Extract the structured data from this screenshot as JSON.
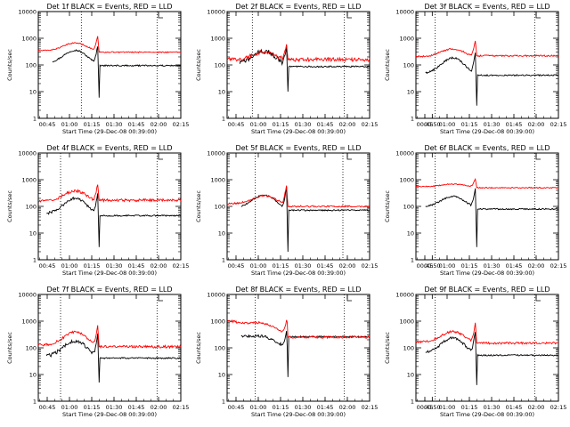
{
  "colors": {
    "black_series": "#000000",
    "red_series": "#ff0000",
    "axes": "#000000"
  },
  "chart_data": [
    {
      "type": "line",
      "title": "Det 1f BLACK = Events, RED = LLD",
      "xlabel": "Start Time (29-Dec-08 00:39:00)",
      "ylabel": "Counts/sec",
      "yscale": "log",
      "ylim": [
        1,
        10000
      ],
      "xlim": [
        0,
        96
      ],
      "x_ticks": [
        "00:45",
        "01:00",
        "01:15",
        "01:30",
        "01:45",
        "02:00",
        "02:15"
      ],
      "x_tick_pos": [
        6,
        21,
        36,
        51,
        66,
        81,
        96
      ],
      "y_ticks": [
        "1",
        "10",
        "100",
        "1000",
        "10000"
      ],
      "dotted_lines": [
        29,
        80
      ],
      "flag_x": 81,
      "series": [
        {
          "color": "#000000",
          "start": 19,
          "base": 120,
          "wave": 0.25,
          "noise": 0.03,
          "spike": 4.5,
          "dip_to": 6
        },
        {
          "color": "#ff0000",
          "start": 0,
          "base": 350,
          "wave": 0.15,
          "noise": 0.02,
          "spike": 3.5,
          "dip_to": 300
        }
      ]
    },
    {
      "type": "line",
      "title": "Det 2f BLACK = Events, RED = LLD",
      "xlabel": "Start Time (29-Dec-08 00:39:00)",
      "ylabel": "Counts/sec",
      "yscale": "log",
      "ylim": [
        1,
        10000
      ],
      "xlim": [
        0,
        96
      ],
      "x_ticks": [
        "00:45",
        "01:00",
        "01:15",
        "01:30",
        "01:45",
        "02:00",
        "02:15"
      ],
      "x_tick_pos": [
        6,
        21,
        36,
        51,
        66,
        81,
        96
      ],
      "y_ticks": [
        "1",
        "10",
        "100",
        "1000",
        "10000"
      ],
      "dotted_lines": [
        17,
        79
      ],
      "flag_x": 81,
      "series": [
        {
          "color": "#000000",
          "start": 17,
          "base": 110,
          "wave": 0.25,
          "noise": 0.09,
          "spike": 5.0,
          "dip_to": 10
        },
        {
          "color": "#ff0000",
          "start": 0,
          "base": 160,
          "wave": 0.15,
          "noise": 0.07,
          "spike": 4.0,
          "dip_to": 160
        }
      ]
    },
    {
      "type": "line",
      "title": "Det 3f BLACK = Events, RED = LLD",
      "xlabel": "Start Time (29-Dec-08 00:39:00)",
      "ylabel": "Counts/sec",
      "yscale": "log",
      "ylim": [
        1,
        10000
      ],
      "xlim": [
        0,
        96
      ],
      "x_ticks": [
        "00:45",
        "00:50",
        "01:00",
        "01:15",
        "01:30",
        "01:45",
        "02:00",
        "02:15"
      ],
      "x_tick_pos": [
        6,
        11,
        21,
        36,
        51,
        66,
        81,
        96
      ],
      "y_ticks": [
        "1",
        "10",
        "100",
        "1000",
        "10000"
      ],
      "dotted_lines": [
        13,
        80
      ],
      "flag_x": 81,
      "series": [
        {
          "color": "#000000",
          "start": 13,
          "base": 50,
          "wave": 0.3,
          "noise": 0.04,
          "spike": 6.0,
          "dip_to": 3
        },
        {
          "color": "#ff0000",
          "start": 0,
          "base": 210,
          "wave": 0.15,
          "noise": 0.03,
          "spike": 4.0,
          "dip_to": 220
        }
      ]
    },
    {
      "type": "line",
      "title": "Det 4f BLACK = Events, RED = LLD",
      "xlabel": "Start Time (29-Dec-08 00:39:00)",
      "ylabel": "Counts/sec",
      "yscale": "log",
      "ylim": [
        1,
        10000
      ],
      "xlim": [
        0,
        96
      ],
      "x_ticks": [
        "00:45",
        "01:00",
        "01:15",
        "01:30",
        "01:45",
        "02:00",
        "02:15"
      ],
      "x_tick_pos": [
        6,
        21,
        36,
        51,
        66,
        81,
        96
      ],
      "y_ticks": [
        "1",
        "10",
        "100",
        "1000",
        "10000"
      ],
      "dotted_lines": [
        15,
        80
      ],
      "flag_x": 81,
      "series": [
        {
          "color": "#000000",
          "start": 11,
          "base": 55,
          "wave": 0.3,
          "noise": 0.05,
          "spike": 6.0,
          "dip_to": 3
        },
        {
          "color": "#ff0000",
          "start": 0,
          "base": 160,
          "wave": 0.2,
          "noise": 0.05,
          "spike": 4.5,
          "dip_to": 170
        }
      ]
    },
    {
      "type": "line",
      "title": "Det 5f BLACK = Events, RED = LLD",
      "xlabel": "Start Time (29-Dec-08 00:39:00)",
      "ylabel": "Counts/sec",
      "yscale": "log",
      "ylim": [
        1,
        10000
      ],
      "xlim": [
        0,
        96
      ],
      "x_ticks": [
        "00:45",
        "01:00",
        "01:15",
        "01:30",
        "01:45",
        "02:00",
        "02:15"
      ],
      "x_tick_pos": [
        6,
        21,
        36,
        51,
        66,
        81,
        96
      ],
      "y_ticks": [
        "1",
        "10",
        "100",
        "1000",
        "10000"
      ],
      "dotted_lines": [
        19,
        78
      ],
      "flag_x": 81,
      "series": [
        {
          "color": "#000000",
          "start": 19,
          "base": 90,
          "wave": 0.25,
          "noise": 0.03,
          "spike": 6.0,
          "dip_to": 2
        },
        {
          "color": "#ff0000",
          "start": 0,
          "base": 130,
          "wave": 0.15,
          "noise": 0.03,
          "spike": 5.0,
          "dip_to": 100
        }
      ]
    },
    {
      "type": "line",
      "title": "Det 6f BLACK = Events, RED = LLD",
      "xlabel": "Start Time (29-Dec-08 00:39:00)",
      "ylabel": "Counts/sec",
      "yscale": "log",
      "ylim": [
        1,
        10000
      ],
      "xlim": [
        0,
        96
      ],
      "x_ticks": [
        "00:45",
        "00:50",
        "01:00",
        "01:15",
        "01:30",
        "01:45",
        "02:00",
        "02:15"
      ],
      "x_tick_pos": [
        6,
        11,
        21,
        36,
        51,
        66,
        81,
        96
      ],
      "y_ticks": [
        "1",
        "10",
        "100",
        "1000",
        "10000"
      ],
      "dotted_lines": [
        13,
        80
      ],
      "flag_x": 81,
      "series": [
        {
          "color": "#000000",
          "start": 13,
          "base": 100,
          "wave": 0.2,
          "noise": 0.03,
          "spike": 5.0,
          "dip_to": 3
        },
        {
          "color": "#ff0000",
          "start": 0,
          "base": 550,
          "wave": 0.05,
          "noise": 0.02,
          "spike": 2.0,
          "dip_to": 500
        }
      ]
    },
    {
      "type": "line",
      "title": "Det 7f BLACK = Events, RED = LLD",
      "xlabel": "Start Time (29-Dec-08 00:39:00)",
      "ylabel": "Counts/sec",
      "yscale": "log",
      "ylim": [
        1,
        10000
      ],
      "xlim": [
        0,
        96
      ],
      "x_ticks": [
        "00:45",
        "01:00",
        "01:15",
        "01:30",
        "01:45",
        "02:00",
        "02:15"
      ],
      "x_tick_pos": [
        6,
        21,
        36,
        51,
        66,
        81,
        96
      ],
      "y_ticks": [
        "1",
        "10",
        "100",
        "1000",
        "10000"
      ],
      "dotted_lines": [
        15,
        80
      ],
      "flag_x": 81,
      "series": [
        {
          "color": "#000000",
          "start": 11,
          "base": 50,
          "wave": 0.3,
          "noise": 0.07,
          "spike": 7.0,
          "dip_to": 5
        },
        {
          "color": "#ff0000",
          "start": 0,
          "base": 130,
          "wave": 0.25,
          "noise": 0.05,
          "spike": 5.0,
          "dip_to": 110
        }
      ]
    },
    {
      "type": "line",
      "title": "Det 8f BLACK = Events, RED = LLD",
      "xlabel": "Start Time (29-Dec-08 00:39:00)",
      "ylabel": "Counts/sec",
      "yscale": "log",
      "ylim": [
        1,
        10000
      ],
      "xlim": [
        0,
        96
      ],
      "x_ticks": [
        "00:45",
        "01:00",
        "01:15",
        "01:30",
        "01:45",
        "02:00",
        "02:15"
      ],
      "x_tick_pos": [
        6,
        21,
        36,
        51,
        66,
        81,
        96
      ],
      "y_ticks": [
        "1",
        "10",
        "100",
        "1000",
        "10000"
      ],
      "dotted_lines": [
        19,
        79
      ],
      "flag_x": 81,
      "series": [
        {
          "color": "#000000",
          "start": 19,
          "base": 350,
          "wave": 0.1,
          "noise": 0.05,
          "trend": -0.6,
          "spike": 4.0,
          "dip_to": 8
        },
        {
          "color": "#ff0000",
          "start": 0,
          "base": 1100,
          "wave": 0.1,
          "noise": 0.04,
          "trend": -0.6,
          "spike": 3.0,
          "dip_to": 250
        }
      ]
    },
    {
      "type": "line",
      "title": "Det 9f BLACK = Events, RED = LLD",
      "xlabel": "Start Time (29-Dec-08 00:39:00)",
      "ylabel": "Counts/sec",
      "yscale": "log",
      "ylim": [
        1,
        10000
      ],
      "xlim": [
        0,
        96
      ],
      "x_ticks": [
        "00:45",
        "00:50",
        "01:00",
        "01:15",
        "01:30",
        "01:45",
        "02:00",
        "02:15"
      ],
      "x_tick_pos": [
        6,
        11,
        21,
        36,
        51,
        66,
        81,
        96
      ],
      "y_ticks": [
        "1",
        "10",
        "100",
        "1000",
        "10000"
      ],
      "dotted_lines": [
        13,
        80
      ],
      "flag_x": 81,
      "series": [
        {
          "color": "#000000",
          "start": 13,
          "base": 65,
          "wave": 0.3,
          "noise": 0.05,
          "spike": 7.0,
          "dip_to": 4
        },
        {
          "color": "#ff0000",
          "start": 0,
          "base": 170,
          "wave": 0.2,
          "noise": 0.04,
          "spike": 5.0,
          "dip_to": 150
        }
      ]
    }
  ]
}
